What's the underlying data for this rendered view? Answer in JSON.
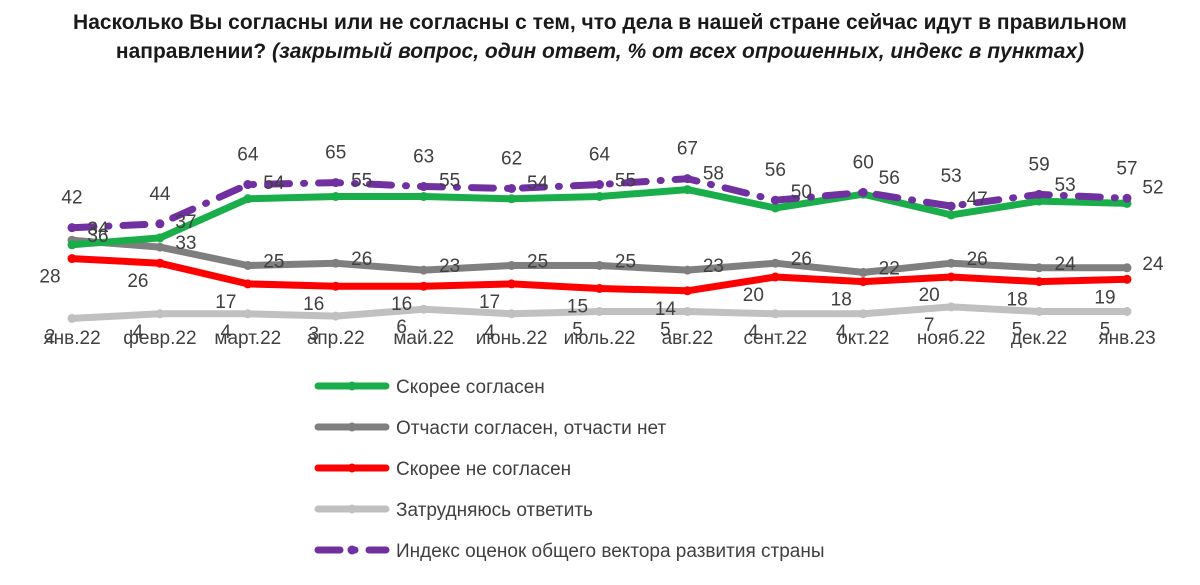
{
  "chart_data": {
    "type": "line",
    "title_main": "Насколько Вы согласны или не согласны с тем, что дела в нашей стране сейчас идут в правильном направлении?",
    "title_note": "(закрытый вопрос, один ответ, % от всех опрошенных, индекс в пунктах)",
    "categories": [
      "янв.22",
      "февр.22",
      "март.22",
      "апр.22",
      "май.22",
      "июнь.22",
      "июль.22",
      "авг.22",
      "сент.22",
      "окт.22",
      "нояб.22",
      "дек.22",
      "янв.23"
    ],
    "series": [
      {
        "name": "Скорее согласен",
        "color": "#1aae4b",
        "style": "solid",
        "values": [
          34,
          37,
          54,
          55,
          55,
          54,
          55,
          58,
          50,
          56,
          47,
          53,
          52
        ]
      },
      {
        "name": "Отчасти согласен, отчасти нет",
        "color": "#7f7f7f",
        "style": "solid",
        "values": [
          36,
          33,
          25,
          26,
          23,
          25,
          25,
          23,
          26,
          22,
          26,
          24,
          24
        ]
      },
      {
        "name": "Скорее не согласен",
        "color": "#ff0000",
        "style": "solid",
        "values": [
          28,
          26,
          17,
          16,
          16,
          17,
          15,
          14,
          20,
          18,
          20,
          18,
          19
        ]
      },
      {
        "name": "Затрудняюсь ответить",
        "color": "#c0c0c0",
        "style": "solid",
        "values": [
          2,
          4,
          4,
          3,
          6,
          4,
          5,
          5,
          4,
          4,
          7,
          5,
          5
        ]
      },
      {
        "name": "Индекс  оценок общего вектора развития страны",
        "color": "#7030a0",
        "style": "dashdot",
        "values": [
          42,
          44,
          64,
          65,
          63,
          62,
          64,
          67,
          56,
          60,
          53,
          59,
          57
        ]
      }
    ],
    "grid": false,
    "legend_position": "bottom"
  }
}
